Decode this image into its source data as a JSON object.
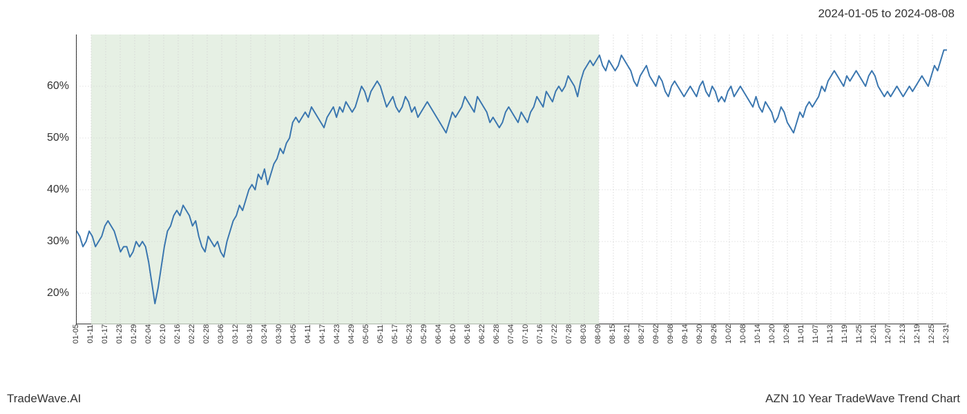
{
  "header": {
    "date_range": "2024-01-05 to 2024-08-08"
  },
  "footer": {
    "left": "TradeWave.AI",
    "right": "AZN 10 Year TradeWave Trend Chart"
  },
  "chart": {
    "type": "line",
    "line_color": "#3a76af",
    "line_width": 2,
    "background_color": "#ffffff",
    "highlight_fill": "#dcead8",
    "highlight_opacity": 0.7,
    "highlight_start": "01-11",
    "highlight_end": "08-09",
    "grid_color": "#d0d0d0",
    "grid_dash": "2,2",
    "axis_color": "#333333",
    "y_axis": {
      "min": 14,
      "max": 70,
      "ticks": [
        20,
        30,
        40,
        50,
        60
      ],
      "tick_labels": [
        "20%",
        "30%",
        "40%",
        "50%",
        "60%"
      ],
      "label_fontsize": 16
    },
    "x_axis": {
      "tick_labels": [
        "01-05",
        "01-11",
        "01-17",
        "01-23",
        "01-29",
        "02-04",
        "02-10",
        "02-16",
        "02-22",
        "02-28",
        "03-06",
        "03-12",
        "03-18",
        "03-24",
        "03-30",
        "04-05",
        "04-11",
        "04-17",
        "04-23",
        "04-29",
        "05-05",
        "05-11",
        "05-17",
        "05-23",
        "05-29",
        "06-04",
        "06-10",
        "06-16",
        "06-22",
        "06-28",
        "07-04",
        "07-10",
        "07-16",
        "07-22",
        "07-28",
        "08-03",
        "08-09",
        "08-15",
        "08-21",
        "08-27",
        "09-02",
        "09-08",
        "09-14",
        "09-20",
        "09-26",
        "10-02",
        "10-08",
        "10-14",
        "10-20",
        "10-26",
        "11-01",
        "11-07",
        "11-13",
        "11-19",
        "11-25",
        "12-01",
        "12-07",
        "12-13",
        "12-19",
        "12-25",
        "12-31"
      ],
      "label_fontsize": 11,
      "label_rotation": -90
    },
    "series": {
      "values": [
        32,
        31,
        29,
        30,
        32,
        31,
        29,
        30,
        31,
        33,
        34,
        33,
        32,
        30,
        28,
        29,
        29,
        27,
        28,
        30,
        29,
        30,
        29,
        26,
        22,
        18,
        21,
        25,
        29,
        32,
        33,
        35,
        36,
        35,
        37,
        36,
        35,
        33,
        34,
        31,
        29,
        28,
        31,
        30,
        29,
        30,
        28,
        27,
        30,
        32,
        34,
        35,
        37,
        36,
        38,
        40,
        41,
        40,
        43,
        42,
        44,
        41,
        43,
        45,
        46,
        48,
        47,
        49,
        50,
        53,
        54,
        53,
        54,
        55,
        54,
        56,
        55,
        54,
        53,
        52,
        54,
        55,
        56,
        54,
        56,
        55,
        57,
        56,
        55,
        56,
        58,
        60,
        59,
        57,
        59,
        60,
        61,
        60,
        58,
        56,
        57,
        58,
        56,
        55,
        56,
        58,
        57,
        55,
        56,
        54,
        55,
        56,
        57,
        56,
        55,
        54,
        53,
        52,
        51,
        53,
        55,
        54,
        55,
        56,
        58,
        57,
        56,
        55,
        58,
        57,
        56,
        55,
        53,
        54,
        53,
        52,
        53,
        55,
        56,
        55,
        54,
        53,
        55,
        54,
        53,
        55,
        56,
        58,
        57,
        56,
        59,
        58,
        57,
        59,
        60,
        59,
        60,
        62,
        61,
        60,
        58,
        61,
        63,
        64,
        65,
        64,
        65,
        66,
        64,
        63,
        65,
        64,
        63,
        64,
        66,
        65,
        64,
        63,
        61,
        60,
        62,
        63,
        64,
        62,
        61,
        60,
        62,
        61,
        59,
        58,
        60,
        61,
        60,
        59,
        58,
        59,
        60,
        59,
        58,
        60,
        61,
        59,
        58,
        60,
        59,
        57,
        58,
        57,
        59,
        60,
        58,
        59,
        60,
        59,
        58,
        57,
        56,
        58,
        56,
        55,
        57,
        56,
        55,
        53,
        54,
        56,
        55,
        53,
        52,
        51,
        53,
        55,
        54,
        56,
        57,
        56,
        57,
        58,
        60,
        59,
        61,
        62,
        63,
        62,
        61,
        60,
        62,
        61,
        62,
        63,
        62,
        61,
        60,
        62,
        63,
        62,
        60,
        59,
        58,
        59,
        58,
        59,
        60,
        59,
        58,
        59,
        60,
        59,
        60,
        61,
        62,
        61,
        60,
        62,
        64,
        63,
        65,
        67,
        67
      ]
    }
  }
}
